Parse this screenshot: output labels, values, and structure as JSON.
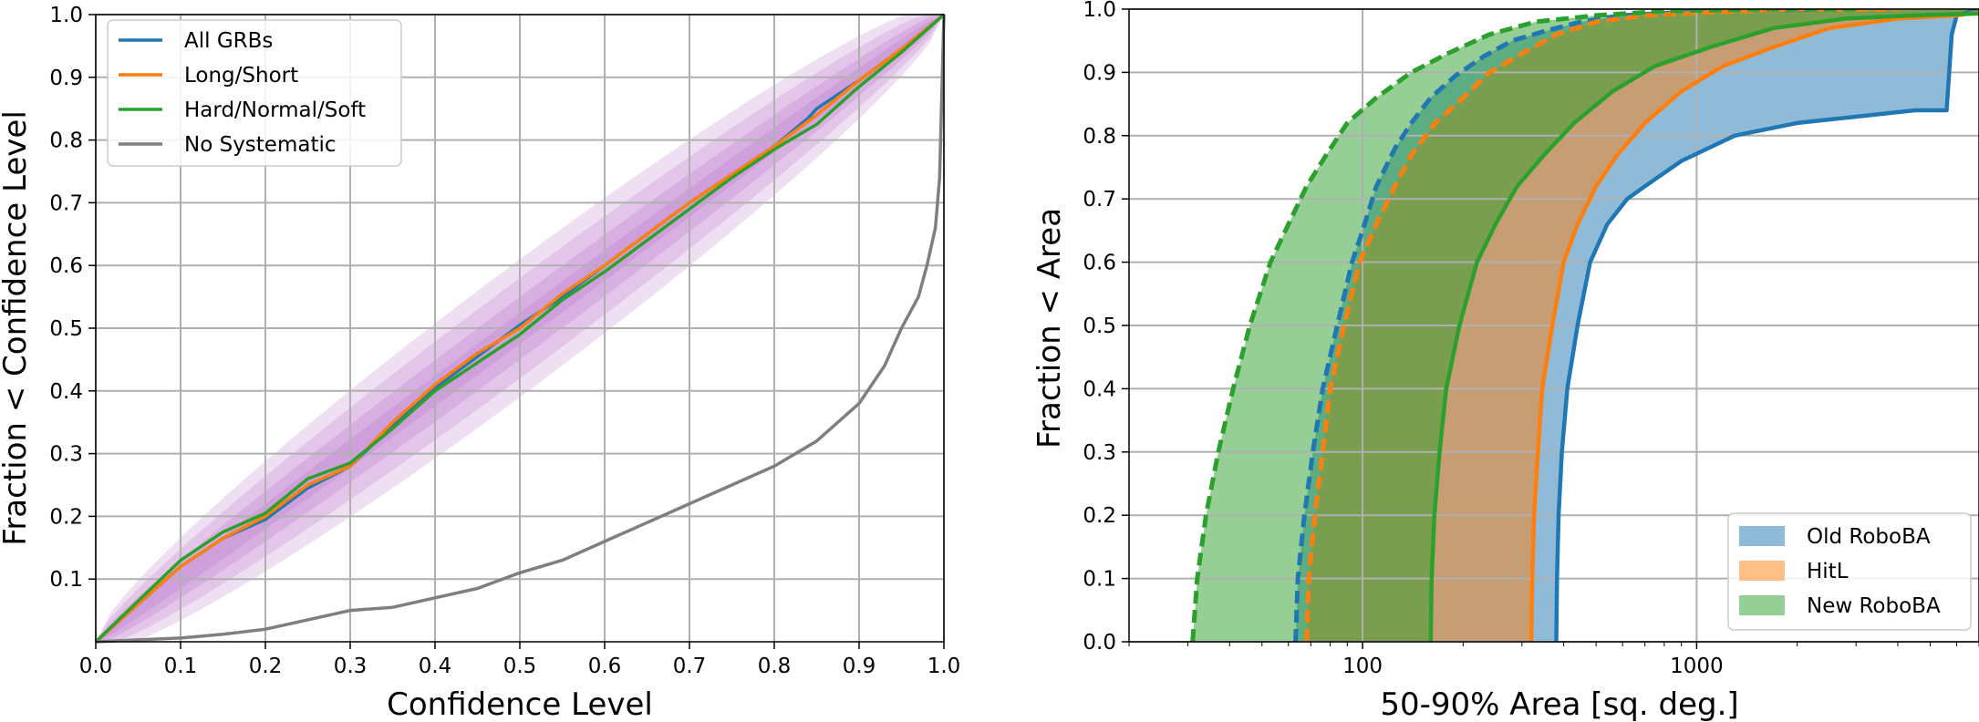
{
  "chart_data": [
    {
      "type": "line",
      "xlabel": "Confidence Level",
      "ylabel": "Fraction < Confidence Level",
      "xlim": [
        0,
        1
      ],
      "ylim": [
        0,
        1
      ],
      "grid": true,
      "legend_placement": "upper-left",
      "x_ticks": [
        "0.0",
        "0.1",
        "0.2",
        "0.3",
        "0.4",
        "0.5",
        "0.6",
        "0.7",
        "0.8",
        "0.9",
        "1.0"
      ],
      "y_ticks": [
        "0.1",
        "0.2",
        "0.3",
        "0.4",
        "0.5",
        "0.6",
        "0.7",
        "0.8",
        "0.9",
        "1.0"
      ],
      "confidence_bands": {
        "color": "#b05fc1",
        "half_widths": [
          0.11,
          0.08,
          0.05,
          0.025
        ]
      },
      "series": [
        {
          "name": "All GRBs",
          "color": "#1f77b4",
          "x": [
            0,
            0.05,
            0.1,
            0.15,
            0.2,
            0.25,
            0.3,
            0.35,
            0.4,
            0.45,
            0.5,
            0.55,
            0.6,
            0.65,
            0.7,
            0.75,
            0.8,
            0.84,
            0.85,
            0.9,
            0.95,
            1.0
          ],
          "y": [
            0,
            0.06,
            0.12,
            0.165,
            0.195,
            0.245,
            0.28,
            0.345,
            0.405,
            0.455,
            0.505,
            0.55,
            0.6,
            0.65,
            0.7,
            0.745,
            0.79,
            0.835,
            0.85,
            0.895,
            0.945,
            1.0
          ]
        },
        {
          "name": "Long/Short",
          "color": "#ff7f0e",
          "x": [
            0,
            0.05,
            0.1,
            0.15,
            0.2,
            0.25,
            0.3,
            0.35,
            0.4,
            0.45,
            0.5,
            0.55,
            0.6,
            0.65,
            0.7,
            0.75,
            0.8,
            0.85,
            0.9,
            0.95,
            1.0
          ],
          "y": [
            0,
            0.06,
            0.12,
            0.165,
            0.2,
            0.25,
            0.28,
            0.35,
            0.41,
            0.46,
            0.5,
            0.555,
            0.6,
            0.65,
            0.7,
            0.745,
            0.79,
            0.84,
            0.895,
            0.945,
            1.0
          ]
        },
        {
          "name": "Hard/Normal/Soft",
          "color": "#2ca02c",
          "x": [
            0,
            0.05,
            0.1,
            0.15,
            0.2,
            0.25,
            0.3,
            0.35,
            0.4,
            0.45,
            0.5,
            0.55,
            0.6,
            0.65,
            0.7,
            0.75,
            0.8,
            0.85,
            0.9,
            0.95,
            1.0
          ],
          "y": [
            0,
            0.065,
            0.13,
            0.175,
            0.205,
            0.26,
            0.285,
            0.34,
            0.4,
            0.445,
            0.49,
            0.545,
            0.59,
            0.64,
            0.69,
            0.74,
            0.785,
            0.825,
            0.885,
            0.94,
            1.0
          ]
        },
        {
          "name": "No Systematic",
          "color": "#7f7f7f",
          "x": [
            0,
            0.05,
            0.1,
            0.15,
            0.2,
            0.25,
            0.3,
            0.35,
            0.4,
            0.45,
            0.5,
            0.55,
            0.6,
            0.65,
            0.7,
            0.75,
            0.8,
            0.85,
            0.9,
            0.93,
            0.95,
            0.97,
            0.98,
            0.99,
            0.995,
            1.0
          ],
          "y": [
            0,
            0.003,
            0.006,
            0.012,
            0.02,
            0.035,
            0.05,
            0.055,
            0.07,
            0.085,
            0.11,
            0.13,
            0.16,
            0.19,
            0.22,
            0.25,
            0.28,
            0.32,
            0.38,
            0.44,
            0.5,
            0.55,
            0.6,
            0.66,
            0.74,
            1.0
          ]
        }
      ]
    },
    {
      "type": "area",
      "xlabel": "50-90% Area [sq. deg.]",
      "ylabel": "Fraction < Area",
      "xscale": "log",
      "xlim": [
        20,
        7000
      ],
      "ylim": [
        0,
        1
      ],
      "grid": true,
      "legend_placement": "lower-right",
      "x_ticks": [
        "100",
        "1000"
      ],
      "y_ticks": [
        "0.0",
        "0.1",
        "0.2",
        "0.3",
        "0.4",
        "0.5",
        "0.6",
        "0.7",
        "0.8",
        "0.9",
        "1.0"
      ],
      "fill_alpha": 0.5,
      "series": [
        {
          "name": "Old RoboBA",
          "color": "#1f77b4",
          "dashed_edge": {
            "x": [
              63,
              64,
              67,
              71,
              76,
              84,
              93,
              100,
              110,
              125,
              140,
              160,
              190,
              230,
              280,
              350,
              450,
              600,
              900,
              1500,
              2500,
              4000
            ],
            "y": [
              0,
              0.1,
              0.2,
              0.3,
              0.4,
              0.5,
              0.6,
              0.65,
              0.72,
              0.78,
              0.82,
              0.86,
              0.895,
              0.925,
              0.95,
              0.965,
              0.98,
              0.99,
              0.995,
              0.998,
              1.0,
              1.0
            ]
          },
          "solid_edge": {
            "x": [
              380,
              382,
              386,
              395,
              410,
              440,
              480,
              540,
              620,
              700,
              900,
              1300,
              2000,
              3000,
              4500,
              5600,
              5700,
              5800,
              6000,
              7000
            ],
            "y": [
              0,
              0.1,
              0.2,
              0.3,
              0.4,
              0.5,
              0.6,
              0.66,
              0.7,
              0.72,
              0.76,
              0.8,
              0.82,
              0.83,
              0.84,
              0.84,
              0.9,
              0.96,
              0.99,
              1.0
            ]
          }
        },
        {
          "name": "HitL",
          "color": "#ff7f0e",
          "dashed_edge": {
            "x": [
              68,
              69,
              72,
              76,
              80,
              88,
              98,
              110,
              125,
              140,
              165,
              200,
              240,
              300,
              380,
              500,
              700,
              1100,
              2000,
              4000
            ],
            "y": [
              0,
              0.1,
              0.2,
              0.3,
              0.4,
              0.5,
              0.6,
              0.66,
              0.72,
              0.77,
              0.82,
              0.86,
              0.9,
              0.93,
              0.96,
              0.98,
              0.99,
              0.995,
              1.0,
              1.0
            ]
          },
          "solid_edge": {
            "x": [
              320,
              322,
              326,
              335,
              345,
              370,
              400,
              440,
              500,
              580,
              700,
              900,
              1200,
              1700,
              2500,
              4000,
              6000,
              7000
            ],
            "y": [
              0,
              0.1,
              0.2,
              0.3,
              0.4,
              0.5,
              0.6,
              0.66,
              0.72,
              0.77,
              0.82,
              0.87,
              0.91,
              0.94,
              0.97,
              0.985,
              0.99,
              0.995
            ]
          }
        },
        {
          "name": "New RoboBA",
          "color": "#2ca02c",
          "dashed_edge": {
            "x": [
              31,
              32,
              34,
              37,
              41,
              46,
              53,
              60,
              68,
              78,
              90,
              110,
              140,
              180,
              240,
              330,
              500,
              800,
              1500,
              3000
            ],
            "y": [
              0,
              0.1,
              0.2,
              0.3,
              0.4,
              0.5,
              0.6,
              0.66,
              0.72,
              0.77,
              0.82,
              0.86,
              0.9,
              0.93,
              0.96,
              0.98,
              0.99,
              0.997,
              1.0,
              1.0
            ]
          },
          "solid_edge": {
            "x": [
              160,
              161,
              164,
              170,
              178,
              195,
              220,
              250,
              290,
              350,
              430,
              560,
              750,
              1100,
              1700,
              2800,
              4500,
              7000
            ],
            "y": [
              0,
              0.1,
              0.2,
              0.3,
              0.4,
              0.5,
              0.6,
              0.66,
              0.72,
              0.77,
              0.82,
              0.87,
              0.91,
              0.94,
              0.97,
              0.985,
              0.99,
              0.993
            ]
          }
        }
      ]
    }
  ]
}
